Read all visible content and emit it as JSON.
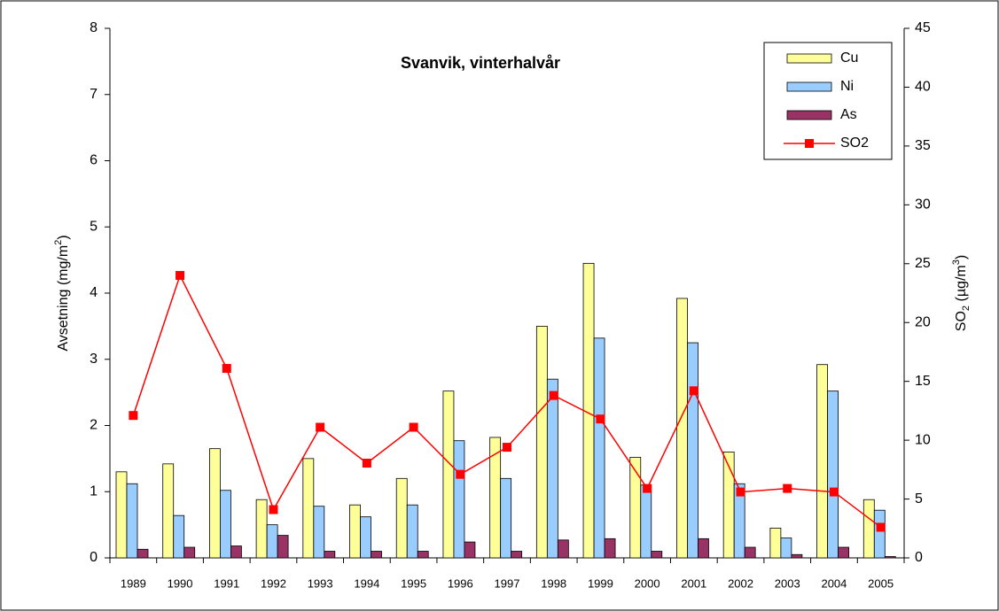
{
  "chart_data": {
    "type": "bar",
    "title": "Svanvik, vinterhalvår",
    "y_label": {
      "text": "Avsetning (mg/m",
      "sup": "2",
      "tail": ")"
    },
    "y2_label": {
      "text": "SO",
      "sub": "2",
      "mid": " (µg/m",
      "sup": "3",
      "tail": ")"
    },
    "categories": [
      "1989",
      "1990",
      "1991",
      "1992",
      "1993",
      "1994",
      "1995",
      "1996",
      "1997",
      "1998",
      "1999",
      "2000",
      "2001",
      "2002",
      "2003",
      "2004",
      "2005"
    ],
    "series": [
      {
        "name": "Cu",
        "color": "#ffff99",
        "values": [
          1.3,
          1.42,
          1.65,
          0.88,
          1.5,
          0.8,
          1.2,
          2.52,
          1.82,
          3.5,
          4.45,
          1.52,
          3.92,
          1.6,
          0.45,
          2.92,
          0.88
        ]
      },
      {
        "name": "Ni",
        "color": "#99ccff",
        "values": [
          1.12,
          0.64,
          1.02,
          0.5,
          0.78,
          0.62,
          0.8,
          1.77,
          1.2,
          2.7,
          3.32,
          1.1,
          3.25,
          1.12,
          0.3,
          2.52,
          0.72
        ]
      },
      {
        "name": "As",
        "color": "#993366",
        "values": [
          0.13,
          0.16,
          0.18,
          0.34,
          0.1,
          0.1,
          0.1,
          0.24,
          0.1,
          0.27,
          0.29,
          0.1,
          0.29,
          0.16,
          0.05,
          0.16,
          0.02
        ]
      },
      {
        "name": "SO2",
        "color": "#ff0000",
        "type": "line",
        "axis": "y2",
        "values": [
          12.1,
          24.0,
          16.1,
          4.1,
          11.1,
          8.05,
          11.1,
          7.1,
          9.4,
          13.8,
          11.8,
          5.9,
          14.2,
          5.6,
          5.9,
          5.6,
          2.6
        ]
      }
    ],
    "ylim": [
      0,
      8
    ],
    "yticks": [
      0,
      1,
      2,
      3,
      4,
      5,
      6,
      7,
      8
    ],
    "y2lim": [
      0,
      45
    ],
    "y2ticks": [
      0,
      5,
      10,
      15,
      20,
      25,
      30,
      35,
      40,
      45
    ]
  }
}
